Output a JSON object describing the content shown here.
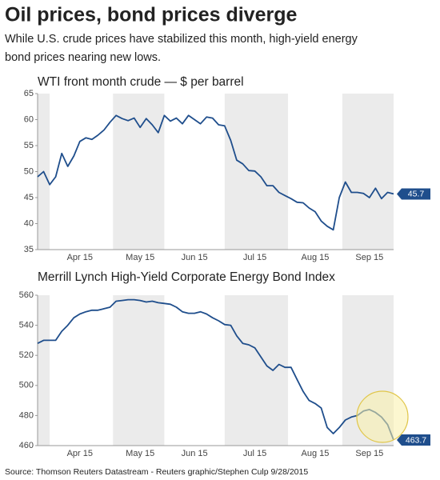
{
  "title": "Oil prices, bond prices diverge",
  "subtitle": [
    "While U.S. crude prices have stabilized this month, high-yield energy",
    "bond prices nearing new lows."
  ],
  "source": "Source: Thomson Reuters Datastream   - Reuters graphic/Stephen Culp 9/28/2015",
  "chart_data": [
    {
      "type": "line",
      "title": "WTI front month crude — $ per barrel",
      "categories": [
        null,
        null,
        null,
        null,
        null,
        null,
        null,
        "Apr 15",
        null,
        null,
        null,
        null,
        null,
        null,
        null,
        null,
        null,
        "May 15",
        null,
        null,
        null,
        null,
        null,
        null,
        null,
        null,
        "Jun 15",
        null,
        null,
        null,
        null,
        null,
        null,
        null,
        null,
        null,
        "Jul 15",
        null,
        null,
        null,
        null,
        null,
        null,
        null,
        null,
        null,
        "Aug 15",
        null,
        null,
        null,
        null,
        null,
        null,
        null,
        null,
        "Sep 15",
        null,
        null,
        null,
        null
      ],
      "series": [
        {
          "color": "#1f4e8c",
          "values": [
            49,
            50,
            47.5,
            49,
            53.5,
            51,
            53,
            55.8,
            56.5,
            56.2,
            57,
            58,
            59.5,
            60.8,
            60.2,
            59.8,
            60.3,
            58.5,
            60.2,
            59,
            57.5,
            60.8,
            59.7,
            60.3,
            59.2,
            60.8,
            60,
            59.2,
            60.5,
            60.3,
            59,
            58.8,
            56,
            52.2,
            51.5,
            50.2,
            50.1,
            49,
            47.3,
            47.3,
            46,
            45.4,
            44.8,
            44.1,
            44,
            43,
            42.3,
            40.5,
            39.5,
            38.8,
            45,
            48,
            46,
            46,
            45.8,
            45,
            46.8,
            44.8,
            46,
            45.7
          ]
        }
      ],
      "ylim": [
        35,
        65
      ],
      "yticks": [
        35,
        40,
        45,
        50,
        55,
        60,
        65
      ],
      "grid": false
    },
    {
      "type": "line",
      "title": "Merrill Lynch High-Yield Corporate Energy Bond Index",
      "categories": [
        null,
        null,
        null,
        null,
        null,
        null,
        null,
        "Apr 15",
        null,
        null,
        null,
        null,
        null,
        null,
        null,
        null,
        null,
        "May 15",
        null,
        null,
        null,
        null,
        null,
        null,
        null,
        null,
        "Jun 15",
        null,
        null,
        null,
        null,
        null,
        null,
        null,
        null,
        null,
        "Jul 15",
        null,
        null,
        null,
        null,
        null,
        null,
        null,
        null,
        null,
        "Aug 15",
        null,
        null,
        null,
        null,
        null,
        null,
        null,
        null,
        "Sep 15",
        null,
        null,
        null,
        null
      ],
      "series": [
        {
          "color": "#1f4e8c",
          "values": [
            528,
            530,
            530,
            530,
            536,
            540,
            545,
            547.5,
            549,
            550,
            550,
            551,
            552,
            556,
            556.5,
            557,
            557,
            556.5,
            555.5,
            556,
            555,
            554.5,
            554,
            552,
            549,
            548,
            548,
            549,
            547.5,
            545,
            543,
            540.5,
            540,
            533,
            528,
            527,
            525,
            519,
            513,
            510,
            514,
            512,
            512,
            504,
            496,
            490,
            488,
            485,
            472,
            468,
            472,
            477,
            479,
            480,
            483,
            484,
            482,
            479,
            474,
            463.7
          ]
        }
      ],
      "ylim": [
        460,
        560
      ],
      "yticks": [
        460,
        480,
        500,
        520,
        540,
        560
      ],
      "grid": false
    }
  ]
}
